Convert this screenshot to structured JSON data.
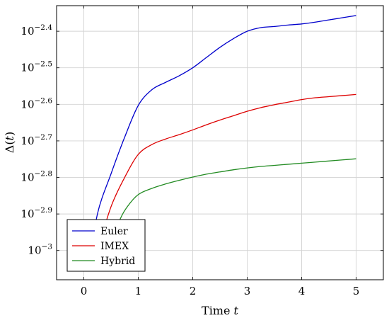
{
  "chart_data": {
    "type": "line",
    "title": "",
    "xlabel": {
      "text": "Time ",
      "var": "t"
    },
    "ylabel": {
      "pre": "Δ(",
      "var": "t",
      "post": ")"
    },
    "y_scale": "log10",
    "xlim": [
      -0.5,
      5.5
    ],
    "ylim_exponent": [
      -3.08,
      -2.33
    ],
    "grid": true,
    "legend_position": "bottom-left",
    "x_ticks": [
      {
        "value": 0,
        "label": "0"
      },
      {
        "value": 1,
        "label": "1"
      },
      {
        "value": 2,
        "label": "2"
      },
      {
        "value": 3,
        "label": "3"
      },
      {
        "value": 4,
        "label": "4"
      },
      {
        "value": 5,
        "label": "5"
      }
    ],
    "y_ticks": [
      {
        "exponent": -2.4,
        "base": "10",
        "sup": "−2.4"
      },
      {
        "exponent": -2.5,
        "base": "10",
        "sup": "−2.5"
      },
      {
        "exponent": -2.6,
        "base": "10",
        "sup": "−2.6"
      },
      {
        "exponent": -2.7,
        "base": "10",
        "sup": "−2.7"
      },
      {
        "exponent": -2.8,
        "base": "10",
        "sup": "−2.8"
      },
      {
        "exponent": -2.9,
        "base": "10",
        "sup": "−2.9"
      },
      {
        "exponent": -3.0,
        "base": "10",
        "sup": "−3"
      }
    ],
    "series": [
      {
        "name": "Euler",
        "color": "#0000cc",
        "x": [
          0.1,
          0.25,
          0.5,
          0.75,
          1.0,
          1.25,
          1.5,
          1.75,
          2.0,
          2.25,
          2.5,
          2.75,
          3.0,
          3.25,
          3.5,
          3.75,
          4.0,
          4.25,
          4.5,
          4.75,
          5.0
        ],
        "y_exponent": [
          -3.05,
          -2.9,
          -2.79,
          -2.69,
          -2.603,
          -2.56,
          -2.54,
          -2.522,
          -2.5,
          -2.472,
          -2.444,
          -2.42,
          -2.4,
          -2.39,
          -2.387,
          -2.383,
          -2.38,
          -2.375,
          -2.369,
          -2.363,
          -2.357
        ]
      },
      {
        "name": "IMEX",
        "color": "#dd0000",
        "x": [
          0.25,
          0.5,
          0.75,
          1.0,
          1.25,
          1.5,
          1.75,
          2.0,
          2.25,
          2.5,
          2.75,
          3.0,
          3.25,
          3.5,
          3.75,
          4.0,
          4.25,
          4.5,
          4.75,
          5.0
        ],
        "y_exponent": [
          -3.0,
          -2.88,
          -2.8,
          -2.737,
          -2.71,
          -2.695,
          -2.683,
          -2.67,
          -2.656,
          -2.643,
          -2.631,
          -2.619,
          -2.609,
          -2.601,
          -2.594,
          -2.587,
          -2.582,
          -2.579,
          -2.576,
          -2.573
        ]
      },
      {
        "name": "Hybrid",
        "color": "#228b22",
        "x": [
          0.45,
          0.65,
          0.8,
          1.0,
          1.25,
          1.5,
          1.75,
          2.0,
          2.25,
          2.5,
          2.75,
          3.0,
          3.25,
          3.5,
          3.75,
          4.0,
          4.25,
          4.5,
          4.75,
          5.0
        ],
        "y_exponent": [
          -3.0,
          -2.92,
          -2.88,
          -2.847,
          -2.83,
          -2.818,
          -2.808,
          -2.799,
          -2.791,
          -2.785,
          -2.779,
          -2.774,
          -2.77,
          -2.767,
          -2.764,
          -2.761,
          -2.758,
          -2.755,
          -2.752,
          -2.749
        ]
      }
    ]
  }
}
